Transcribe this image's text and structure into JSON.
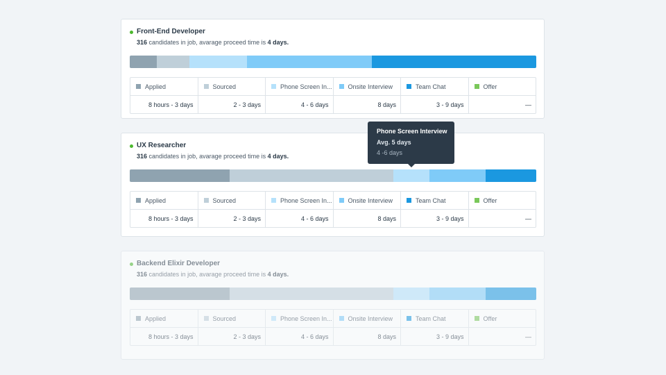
{
  "cards": [
    {
      "title": "Front-End Developer",
      "count": "316",
      "text": " candidates in job, avarage proceed time is ",
      "days": "4 days.",
      "stages": [
        {
          "label": "Applied",
          "color": "#8fa3b0",
          "share": 6.7,
          "time": "8 hours - 3 days"
        },
        {
          "label": "Sourced",
          "color": "#bfcfd9",
          "share": 8.0,
          "time": "2 - 3 days"
        },
        {
          "label": "Phone Screen In...",
          "color": "#b5e1fb",
          "share": 14.2,
          "time": "4 - 6 days"
        },
        {
          "label": "Onsite Interview",
          "color": "#7fcbf8",
          "share": 30.7,
          "time": "8 days"
        },
        {
          "label": "Team Chat",
          "color": "#1b98e0",
          "share": 40.4,
          "time": "3 - 9 days"
        },
        {
          "label": "Offer",
          "color": "#7ac85a",
          "share": 0,
          "time": "—"
        }
      ]
    },
    {
      "title": "UX Researcher",
      "count": "316",
      "text": " candidates in job, avarage proceed time is ",
      "days": "4 days.",
      "stages": [
        {
          "label": "Applied",
          "color": "#8fa3b0",
          "share": 24.6,
          "time": "8 hours - 3 days"
        },
        {
          "label": "Sourced",
          "color": "#bfcfd9",
          "share": 40.3,
          "time": "2 - 3 days"
        },
        {
          "label": "Phone Screen In...",
          "color": "#b5e1fb",
          "share": 8.9,
          "time": "4 - 6 days"
        },
        {
          "label": "Onsite Interview",
          "color": "#7fcbf8",
          "share": 13.8,
          "time": "8 days"
        },
        {
          "label": "Team Chat",
          "color": "#1b98e0",
          "share": 12.5,
          "time": "3 - 9 days"
        },
        {
          "label": "Offer",
          "color": "#7ac85a",
          "share": 0,
          "time": "—"
        }
      ]
    },
    {
      "title": "Backend Elixir Developer",
      "count": "316",
      "text": " candidates in job, avarage proceed time is ",
      "days": "4 days.",
      "stages": [
        {
          "label": "Applied",
          "color": "#8fa3b0",
          "share": 24.6,
          "time": "8 hours - 3 days"
        },
        {
          "label": "Sourced",
          "color": "#bfcfd9",
          "share": 40.3,
          "time": "2 - 3 days"
        },
        {
          "label": "Phone Screen In...",
          "color": "#b5e1fb",
          "share": 8.9,
          "time": "4 - 6 days"
        },
        {
          "label": "Onsite Interview",
          "color": "#7fcbf8",
          "share": 13.8,
          "time": "8 days"
        },
        {
          "label": "Team Chat",
          "color": "#1b98e0",
          "share": 12.5,
          "time": "3 - 9 days"
        },
        {
          "label": "Offer",
          "color": "#7ac85a",
          "share": 0,
          "time": "—"
        }
      ]
    }
  ],
  "tooltip": {
    "title": "Phone Screen Interview",
    "avg": "Avg. 5 days",
    "range": "4 -6 days"
  }
}
